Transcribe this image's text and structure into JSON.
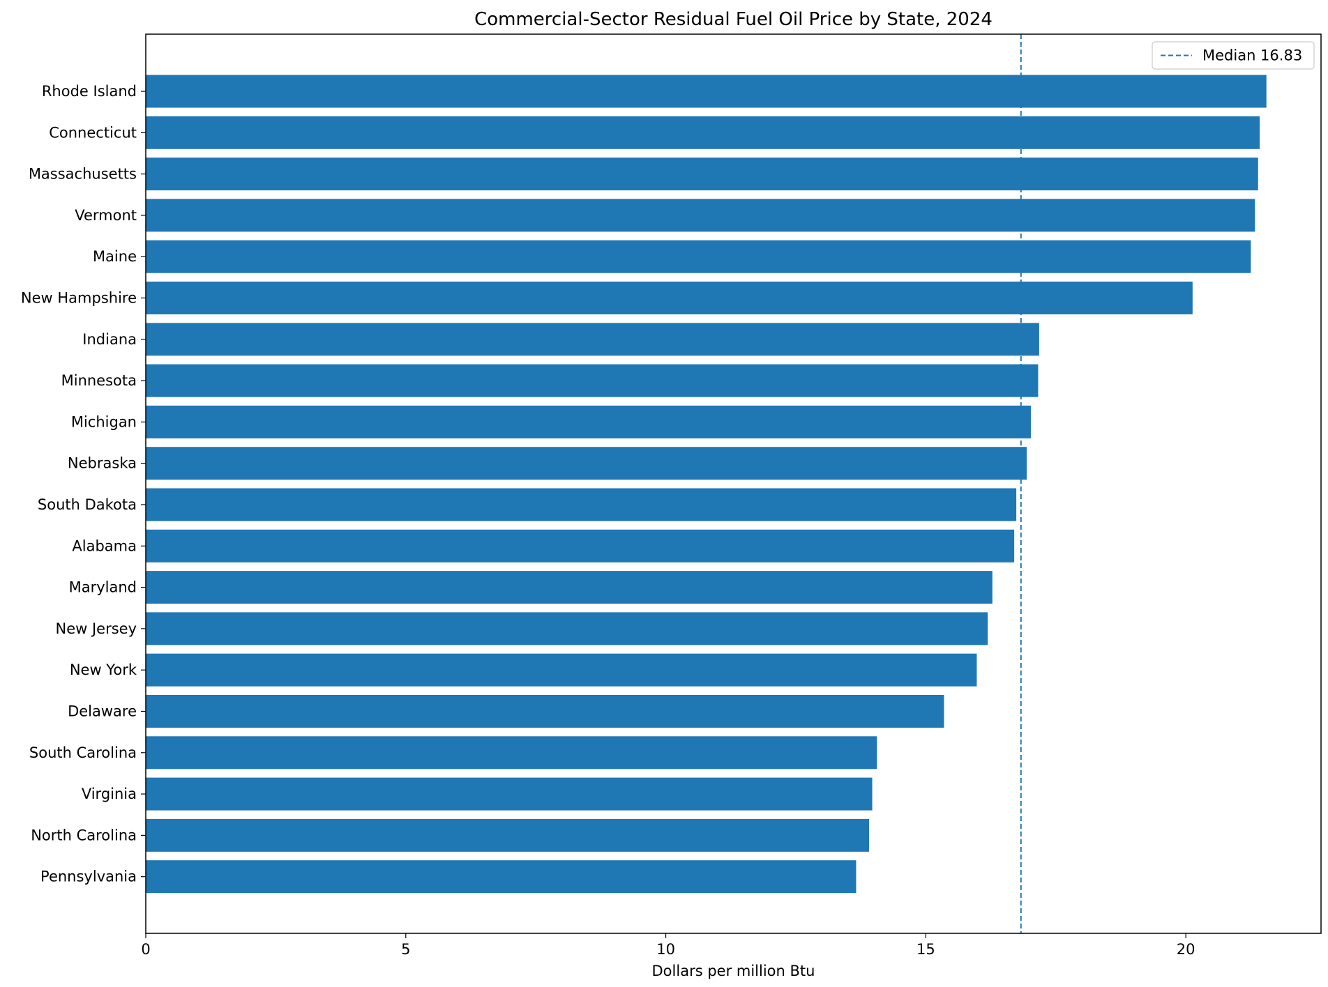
{
  "chart_data": {
    "type": "bar",
    "orientation": "horizontal",
    "title": "Commercial-Sector Residual Fuel Oil Price by State, 2024",
    "xlabel": "Dollars per million Btu",
    "ylabel": "",
    "xlim": [
      0,
      22.6
    ],
    "xticks": [
      0,
      5,
      10,
      15,
      20
    ],
    "xtick_labels": [
      "0",
      "5",
      "10",
      "15",
      "20"
    ],
    "grid": false,
    "bar_color": "#1f77b4",
    "categories": [
      "Rhode Island",
      "Connecticut",
      "Massachusetts",
      "Vermont",
      "Maine",
      "New Hampshire",
      "Indiana",
      "Minnesota",
      "Michigan",
      "Nebraska",
      "South Dakota",
      "Alabama",
      "Maryland",
      "New Jersey",
      "New York",
      "Delaware",
      "South Carolina",
      "Virginia",
      "North Carolina",
      "Pennsylvania"
    ],
    "values": [
      21.55,
      21.42,
      21.39,
      21.33,
      21.25,
      20.13,
      17.18,
      17.16,
      17.02,
      16.94,
      16.74,
      16.7,
      16.28,
      16.19,
      15.98,
      15.35,
      14.06,
      13.97,
      13.91,
      13.66
    ],
    "reference_line": {
      "value": 16.83,
      "style": "dashed",
      "color": "#1f77b4",
      "label": "Median 16.83"
    },
    "legend": {
      "position": "top-right",
      "entries": [
        "Median 16.83"
      ]
    }
  }
}
